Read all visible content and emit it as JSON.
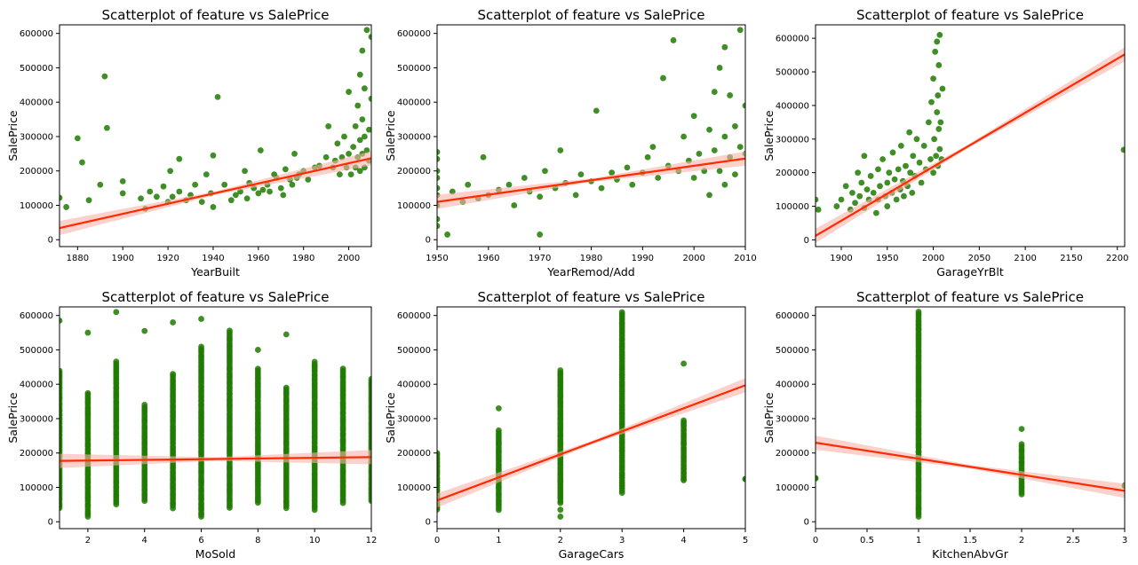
{
  "chart_data": [
    {
      "type": "scatter",
      "title": "Scatterplot of feature vs SalePrice",
      "xlabel": "YearBuilt",
      "ylabel": "SalePrice",
      "xlim": [
        1872,
        2010
      ],
      "ylim": [
        -20000,
        625000
      ],
      "xticks": [
        1880,
        1900,
        1920,
        1940,
        1960,
        1980,
        2000
      ],
      "yticks": [
        0,
        100000,
        200000,
        300000,
        400000,
        500000,
        600000
      ],
      "regression": {
        "x": [
          1872,
          2010
        ],
        "y": [
          34000,
          237000
        ]
      },
      "points": [
        [
          1872,
          122000
        ],
        [
          1875,
          95000
        ],
        [
          1880,
          295000
        ],
        [
          1882,
          225000
        ],
        [
          1885,
          115000
        ],
        [
          1890,
          160000
        ],
        [
          1892,
          475000
        ],
        [
          1893,
          325000
        ],
        [
          1900,
          135000
        ],
        [
          1900,
          170000
        ],
        [
          1908,
          120000
        ],
        [
          1910,
          90000
        ],
        [
          1912,
          140000
        ],
        [
          1915,
          125000
        ],
        [
          1918,
          155000
        ],
        [
          1920,
          110000
        ],
        [
          1921,
          200000
        ],
        [
          1922,
          125000
        ],
        [
          1925,
          140000
        ],
        [
          1925,
          235000
        ],
        [
          1928,
          115000
        ],
        [
          1930,
          130000
        ],
        [
          1932,
          160000
        ],
        [
          1935,
          110000
        ],
        [
          1937,
          190000
        ],
        [
          1939,
          135000
        ],
        [
          1940,
          245000
        ],
        [
          1940,
          95000
        ],
        [
          1942,
          415000
        ],
        [
          1945,
          160000
        ],
        [
          1948,
          115000
        ],
        [
          1950,
          130000
        ],
        [
          1952,
          140000
        ],
        [
          1954,
          200000
        ],
        [
          1955,
          120000
        ],
        [
          1956,
          165000
        ],
        [
          1958,
          150000
        ],
        [
          1960,
          135000
        ],
        [
          1961,
          260000
        ],
        [
          1962,
          145000
        ],
        [
          1964,
          160000
        ],
        [
          1965,
          140000
        ],
        [
          1967,
          190000
        ],
        [
          1968,
          180000
        ],
        [
          1970,
          150000
        ],
        [
          1971,
          130000
        ],
        [
          1972,
          205000
        ],
        [
          1974,
          175000
        ],
        [
          1975,
          160000
        ],
        [
          1976,
          250000
        ],
        [
          1977,
          180000
        ],
        [
          1978,
          190000
        ],
        [
          1980,
          200000
        ],
        [
          1982,
          175000
        ],
        [
          1985,
          210000
        ],
        [
          1987,
          215000
        ],
        [
          1990,
          240000
        ],
        [
          1991,
          330000
        ],
        [
          1993,
          210000
        ],
        [
          1994,
          230000
        ],
        [
          1995,
          280000
        ],
        [
          1996,
          190000
        ],
        [
          1997,
          240000
        ],
        [
          1998,
          300000
        ],
        [
          1999,
          210000
        ],
        [
          2000,
          250000
        ],
        [
          2000,
          430000
        ],
        [
          2001,
          190000
        ],
        [
          2002,
          270000
        ],
        [
          2003,
          330000
        ],
        [
          2003,
          210000
        ],
        [
          2004,
          240000
        ],
        [
          2004,
          390000
        ],
        [
          2005,
          200000
        ],
        [
          2005,
          290000
        ],
        [
          2005,
          480000
        ],
        [
          2006,
          250000
        ],
        [
          2006,
          350000
        ],
        [
          2006,
          550000
        ],
        [
          2007,
          210000
        ],
        [
          2007,
          300000
        ],
        [
          2007,
          440000
        ],
        [
          2008,
          260000
        ],
        [
          2008,
          610000
        ],
        [
          2009,
          320000
        ],
        [
          2009,
          230000
        ],
        [
          2010,
          410000
        ],
        [
          2010,
          590000
        ]
      ]
    },
    {
      "type": "scatter",
      "title": "Scatterplot of feature vs SalePrice",
      "xlabel": "YearRemod/Add",
      "ylabel": "SalePrice",
      "xlim": [
        1950,
        2010
      ],
      "ylim": [
        -20000,
        625000
      ],
      "xticks": [
        1950,
        1960,
        1970,
        1980,
        1990,
        2000,
        2010
      ],
      "yticks": [
        0,
        100000,
        200000,
        300000,
        400000,
        500000,
        600000
      ],
      "regression": {
        "x": [
          1950,
          2010
        ],
        "y": [
          110000,
          236000
        ]
      },
      "points": [
        [
          1950,
          100000
        ],
        [
          1950,
          130000
        ],
        [
          1950,
          150000
        ],
        [
          1950,
          180000
        ],
        [
          1950,
          200000
        ],
        [
          1950,
          235000
        ],
        [
          1950,
          255000
        ],
        [
          1950,
          60000
        ],
        [
          1950,
          40000
        ],
        [
          1952,
          15000
        ],
        [
          1953,
          140000
        ],
        [
          1955,
          110000
        ],
        [
          1956,
          160000
        ],
        [
          1958,
          120000
        ],
        [
          1959,
          240000
        ],
        [
          1960,
          130000
        ],
        [
          1962,
          145000
        ],
        [
          1964,
          160000
        ],
        [
          1965,
          100000
        ],
        [
          1967,
          180000
        ],
        [
          1968,
          140000
        ],
        [
          1970,
          125000
        ],
        [
          1970,
          15000
        ],
        [
          1971,
          200000
        ],
        [
          1973,
          150000
        ],
        [
          1974,
          260000
        ],
        [
          1975,
          165000
        ],
        [
          1977,
          130000
        ],
        [
          1978,
          190000
        ],
        [
          1980,
          170000
        ],
        [
          1981,
          375000
        ],
        [
          1982,
          150000
        ],
        [
          1984,
          195000
        ],
        [
          1985,
          175000
        ],
        [
          1987,
          210000
        ],
        [
          1988,
          160000
        ],
        [
          1990,
          195000
        ],
        [
          1991,
          240000
        ],
        [
          1992,
          270000
        ],
        [
          1993,
          180000
        ],
        [
          1994,
          470000
        ],
        [
          1995,
          215000
        ],
        [
          1996,
          580000
        ],
        [
          1997,
          200000
        ],
        [
          1998,
          300000
        ],
        [
          1999,
          230000
        ],
        [
          2000,
          180000
        ],
        [
          2000,
          360000
        ],
        [
          2001,
          250000
        ],
        [
          2002,
          200000
        ],
        [
          2003,
          320000
        ],
        [
          2003,
          130000
        ],
        [
          2004,
          260000
        ],
        [
          2004,
          430000
        ],
        [
          2005,
          200000
        ],
        [
          2005,
          500000
        ],
        [
          2006,
          160000
        ],
        [
          2006,
          300000
        ],
        [
          2006,
          560000
        ],
        [
          2007,
          240000
        ],
        [
          2007,
          420000
        ],
        [
          2008,
          190000
        ],
        [
          2008,
          330000
        ],
        [
          2009,
          270000
        ],
        [
          2009,
          610000
        ],
        [
          2010,
          250000
        ],
        [
          2010,
          390000
        ]
      ]
    },
    {
      "type": "scatter",
      "title": "Scatterplot of feature vs SalePrice",
      "xlabel": "GarageYrBlt",
      "ylabel": "SalePrice",
      "xlim": [
        1872,
        2208
      ],
      "ylim": [
        -20000,
        640000
      ],
      "xticks": [
        1900,
        1950,
        2000,
        2050,
        2100,
        2150,
        2200
      ],
      "yticks": [
        0,
        100000,
        200000,
        300000,
        400000,
        500000,
        600000
      ],
      "regression": {
        "x": [
          1872,
          2208
        ],
        "y": [
          12000,
          552000
        ]
      },
      "points": [
        [
          1872,
          120000
        ],
        [
          1875,
          90000
        ],
        [
          1895,
          100000
        ],
        [
          1900,
          120000
        ],
        [
          1905,
          160000
        ],
        [
          1910,
          90000
        ],
        [
          1912,
          140000
        ],
        [
          1915,
          110000
        ],
        [
          1918,
          200000
        ],
        [
          1920,
          130000
        ],
        [
          1922,
          170000
        ],
        [
          1925,
          95000
        ],
        [
          1925,
          250000
        ],
        [
          1928,
          150000
        ],
        [
          1930,
          120000
        ],
        [
          1932,
          190000
        ],
        [
          1935,
          140000
        ],
        [
          1938,
          80000
        ],
        [
          1940,
          210000
        ],
        [
          1940,
          120000
        ],
        [
          1942,
          160000
        ],
        [
          1945,
          240000
        ],
        [
          1948,
          130000
        ],
        [
          1950,
          170000
        ],
        [
          1950,
          100000
        ],
        [
          1952,
          200000
        ],
        [
          1955,
          140000
        ],
        [
          1956,
          260000
        ],
        [
          1958,
          180000
        ],
        [
          1960,
          120000
        ],
        [
          1962,
          210000
        ],
        [
          1964,
          150000
        ],
        [
          1965,
          280000
        ],
        [
          1967,
          175000
        ],
        [
          1968,
          130000
        ],
        [
          1970,
          220000
        ],
        [
          1972,
          160000
        ],
        [
          1974,
          320000
        ],
        [
          1975,
          200000
        ],
        [
          1977,
          140000
        ],
        [
          1978,
          250000
        ],
        [
          1980,
          190000
        ],
        [
          1982,
          300000
        ],
        [
          1985,
          230000
        ],
        [
          1987,
          170000
        ],
        [
          1990,
          280000
        ],
        [
          1992,
          210000
        ],
        [
          1995,
          350000
        ],
        [
          1997,
          240000
        ],
        [
          1998,
          410000
        ],
        [
          2000,
          200000
        ],
        [
          2000,
          480000
        ],
        [
          2001,
          300000
        ],
        [
          2002,
          560000
        ],
        [
          2003,
          250000
        ],
        [
          2004,
          380000
        ],
        [
          2004,
          590000
        ],
        [
          2005,
          220000
        ],
        [
          2005,
          430000
        ],
        [
          2006,
          330000
        ],
        [
          2006,
          520000
        ],
        [
          2007,
          270000
        ],
        [
          2007,
          610000
        ],
        [
          2008,
          350000
        ],
        [
          2009,
          240000
        ],
        [
          2010,
          450000
        ],
        [
          2207,
          268000
        ]
      ]
    },
    {
      "type": "scatter",
      "title": "Scatterplot of feature vs SalePrice",
      "xlabel": "MoSold",
      "ylabel": "SalePrice",
      "xlim": [
        1,
        12
      ],
      "ylim": [
        -20000,
        625000
      ],
      "xticks": [
        2,
        4,
        6,
        8,
        10,
        12
      ],
      "yticks": [
        0,
        100000,
        200000,
        300000,
        400000,
        500000,
        600000
      ],
      "regression": {
        "x": [
          1,
          12
        ],
        "y": [
          177000,
          188000
        ]
      },
      "columns": [
        {
          "x": 1,
          "min": 40000,
          "max": 440000,
          "out": [
            585000
          ]
        },
        {
          "x": 2,
          "min": 15000,
          "max": 375000,
          "out": [
            550000
          ]
        },
        {
          "x": 3,
          "min": 50000,
          "max": 465000,
          "out": [
            610000
          ]
        },
        {
          "x": 4,
          "min": 60000,
          "max": 340000,
          "out": [
            555000
          ]
        },
        {
          "x": 5,
          "min": 40000,
          "max": 430000,
          "out": [
            580000
          ]
        },
        {
          "x": 6,
          "min": 15000,
          "max": 510000,
          "out": [
            590000
          ]
        },
        {
          "x": 7,
          "min": 40000,
          "max": 555000,
          "out": []
        },
        {
          "x": 8,
          "min": 55000,
          "max": 445000,
          "out": [
            500000
          ]
        },
        {
          "x": 9,
          "min": 40000,
          "max": 390000,
          "out": [
            545000
          ]
        },
        {
          "x": 10,
          "min": 35000,
          "max": 465000,
          "out": []
        },
        {
          "x": 11,
          "min": 55000,
          "max": 445000,
          "out": []
        },
        {
          "x": 12,
          "min": 60000,
          "max": 415000,
          "out": []
        }
      ]
    },
    {
      "type": "scatter",
      "title": "Scatterplot of feature vs SalePrice",
      "xlabel": "GarageCars",
      "ylabel": "SalePrice",
      "xlim": [
        0,
        5
      ],
      "ylim": [
        -20000,
        625000
      ],
      "xticks": [
        0,
        1,
        2,
        3,
        4,
        5
      ],
      "yticks": [
        0,
        100000,
        200000,
        300000,
        400000,
        500000,
        600000
      ],
      "regression": {
        "x": [
          0,
          5
        ],
        "y": [
          62000,
          397000
        ]
      },
      "columns": [
        {
          "x": 0,
          "min": 35000,
          "max": 200000,
          "out": []
        },
        {
          "x": 1,
          "min": 35000,
          "max": 265000,
          "out": [
            330000
          ]
        },
        {
          "x": 2,
          "min": 55000,
          "max": 440000,
          "out": [
            15000,
            35000
          ]
        },
        {
          "x": 3,
          "min": 85000,
          "max": 610000,
          "out": []
        },
        {
          "x": 4,
          "min": 120000,
          "max": 295000,
          "out": [
            460000
          ]
        },
        {
          "x": 5,
          "min": 125000,
          "max": 125000,
          "out": []
        }
      ]
    },
    {
      "type": "scatter",
      "title": "Scatterplot of feature vs SalePrice",
      "xlabel": "KitchenAbvGr",
      "ylabel": "SalePrice",
      "xlim": [
        0,
        3
      ],
      "ylim": [
        -20000,
        625000
      ],
      "xticks": [
        0.0,
        0.5,
        1.0,
        1.5,
        2.0,
        2.5,
        3.0
      ],
      "yticks": [
        0,
        100000,
        200000,
        300000,
        400000,
        500000,
        600000
      ],
      "regression": {
        "x": [
          0,
          3
        ],
        "y": [
          230000,
          90000
        ]
      },
      "columns": [
        {
          "x": 0,
          "min": 127000,
          "max": 127000,
          "out": []
        },
        {
          "x": 1,
          "min": 15000,
          "max": 610000,
          "out": []
        },
        {
          "x": 2,
          "min": 80000,
          "max": 225000,
          "out": [
            270000
          ]
        },
        {
          "x": 3,
          "min": 105000,
          "max": 105000,
          "out": []
        }
      ]
    }
  ],
  "colors": {
    "points": "#1f7a00",
    "regression": "#ff2a00",
    "band": "#f6b3a8"
  }
}
